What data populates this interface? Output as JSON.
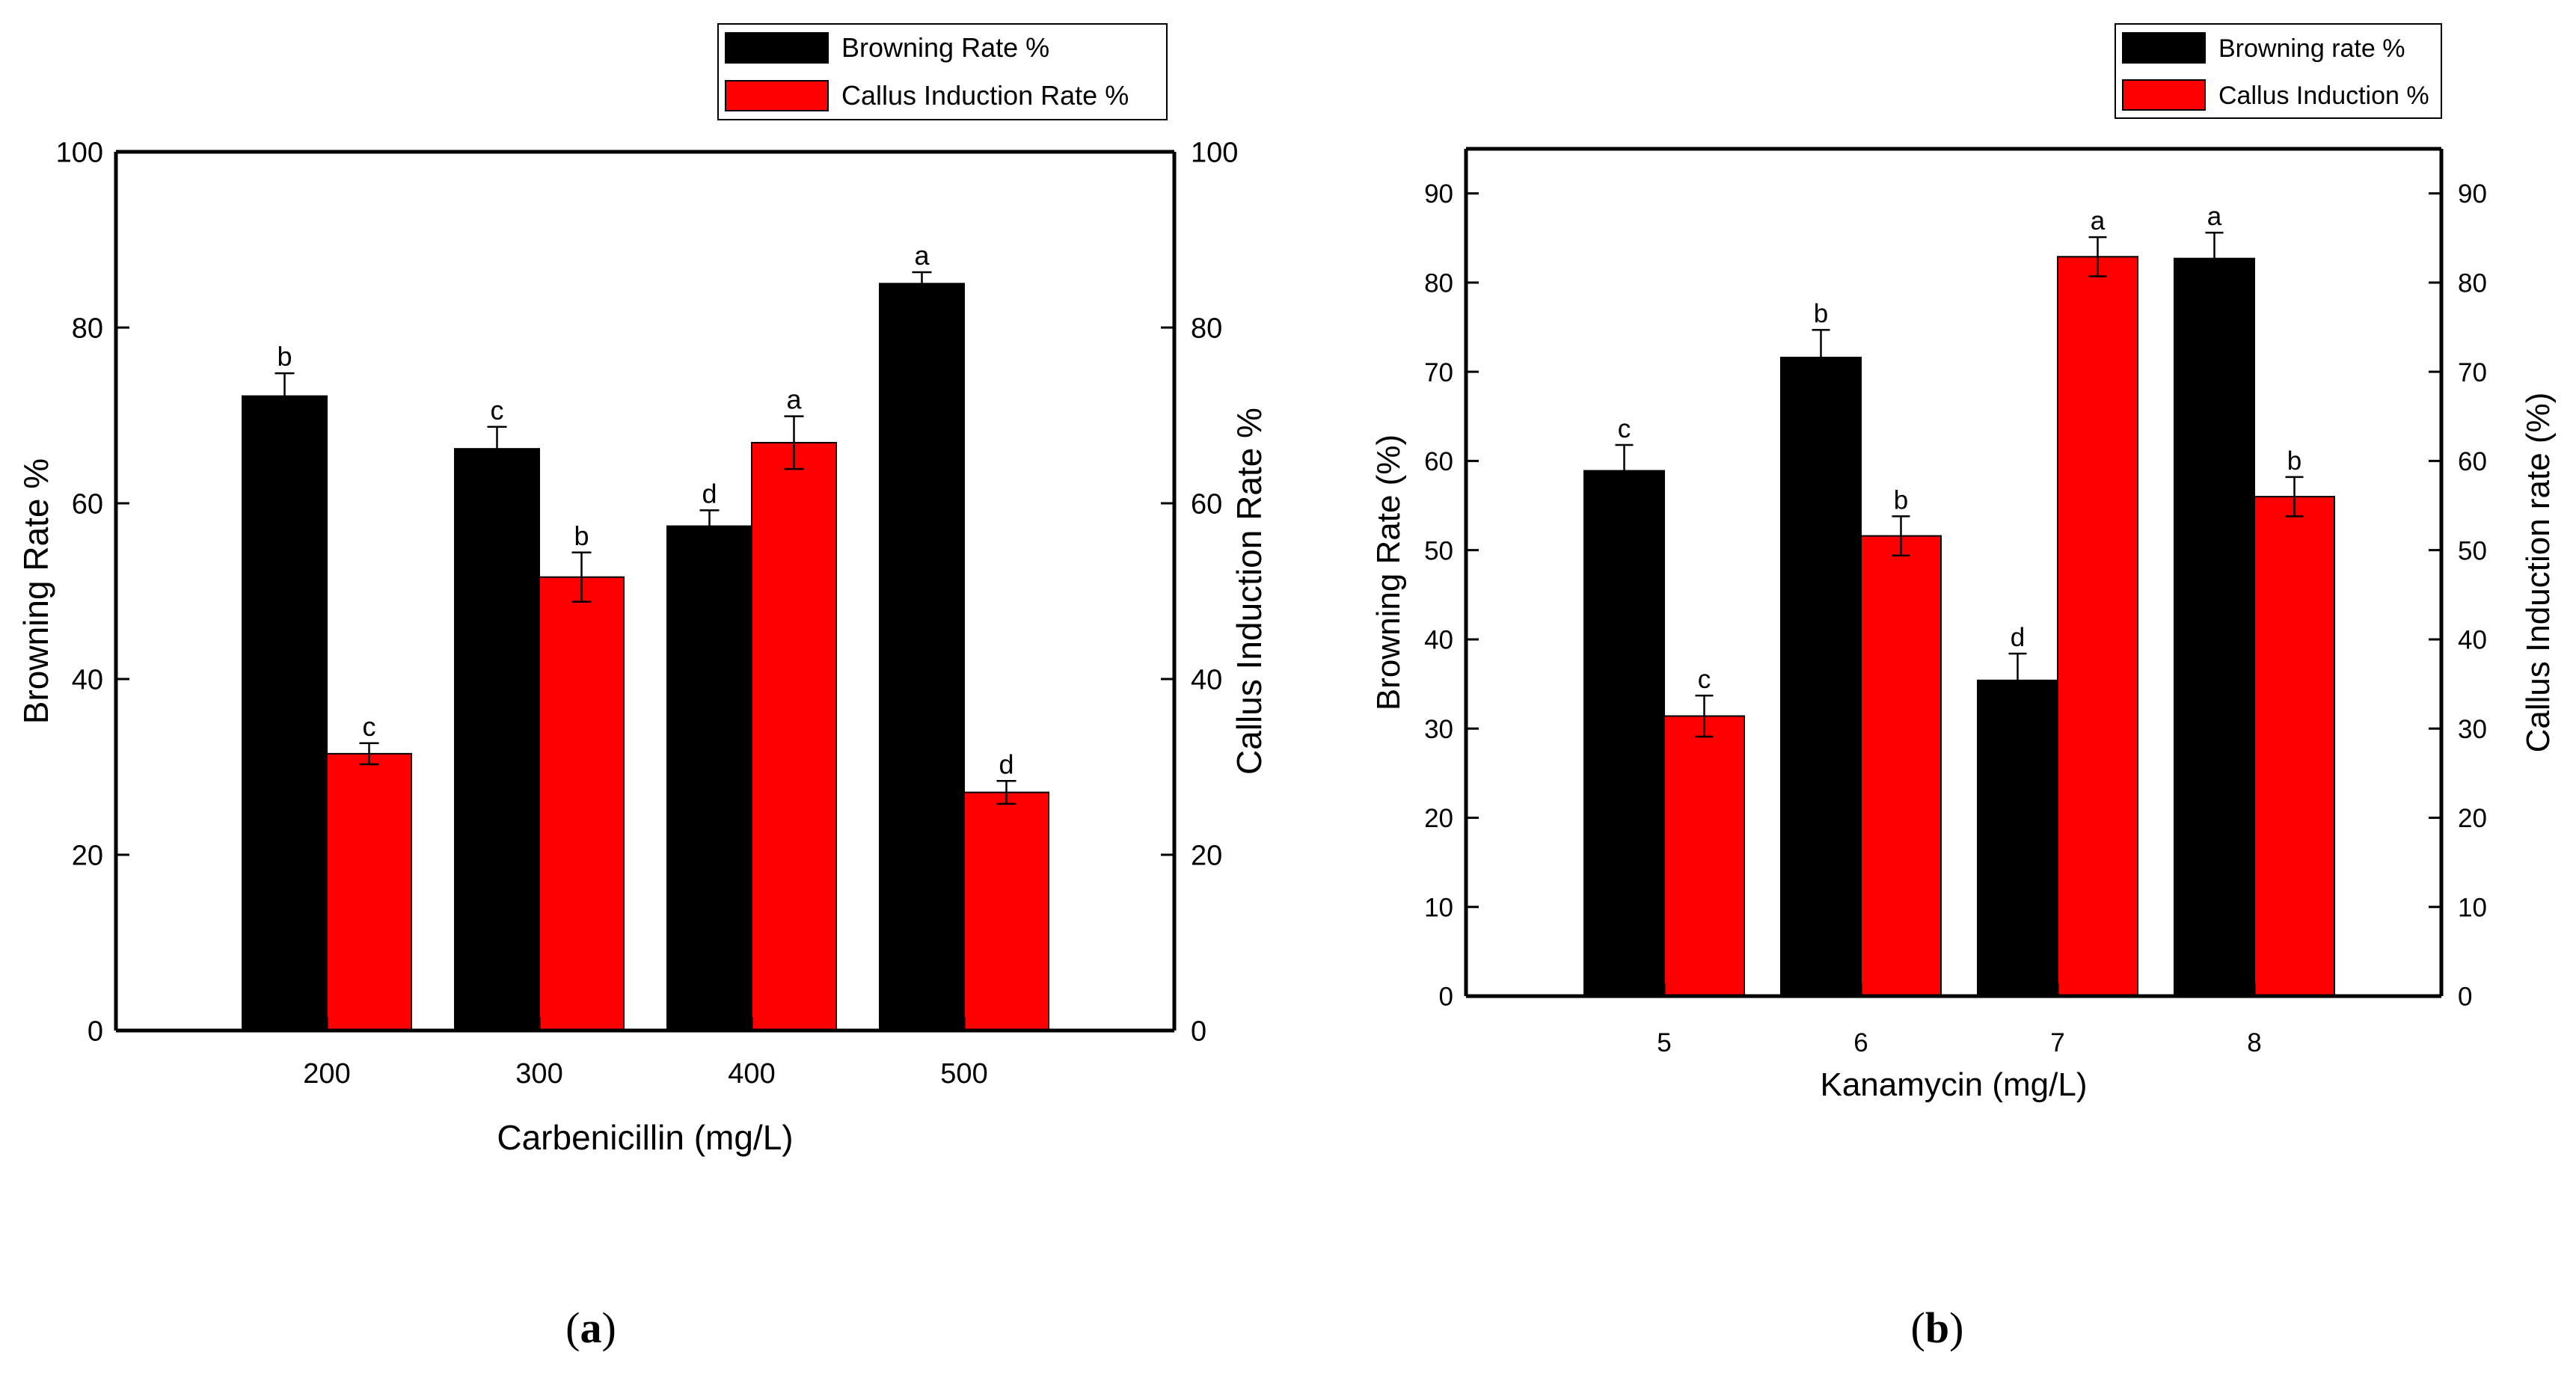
{
  "colors": {
    "browning": "#000000",
    "callus": "#ff0000",
    "axis": "#000000",
    "background": "#ffffff"
  },
  "chart_data": [
    {
      "type": "bar",
      "panel_label": "a",
      "panel_label_bracket_open": "(",
      "panel_label_bracket_close": ")",
      "title": "",
      "categories": [
        "200",
        "300",
        "400",
        "500"
      ],
      "series": [
        {
          "name": "Browning Rate %",
          "axis": "left",
          "values": [
            72.2,
            66.2,
            57.4,
            85.0
          ],
          "errors": [
            2.6,
            2.5,
            1.8,
            1.3
          ],
          "letters": [
            "b",
            "c",
            "d",
            "a"
          ]
        },
        {
          "name": "Callus Induction Rate %",
          "axis": "right",
          "values": [
            31.5,
            51.6,
            66.9,
            27.1
          ],
          "errors": [
            1.2,
            2.8,
            3.0,
            1.3
          ],
          "letters": [
            "c",
            "b",
            "a",
            "d"
          ]
        }
      ],
      "xlabel": "Carbenicillin (mg/L)",
      "ylabel": "Browning Rate %",
      "y2label": "Callus Induction Rate %",
      "ylim": [
        0,
        100
      ],
      "yticks": [
        "0",
        "20",
        "40",
        "60",
        "80",
        "100"
      ],
      "y2lim": [
        0,
        100
      ],
      "y2ticks": [
        "0",
        "20",
        "40",
        "60",
        "80",
        "100"
      ],
      "legend_position": "top-right"
    },
    {
      "type": "bar",
      "panel_label": "b",
      "panel_label_bracket_open": "(",
      "panel_label_bracket_close": ")",
      "title": "",
      "categories": [
        "5",
        "6",
        "7",
        "8"
      ],
      "series": [
        {
          "name": "Browning rate %",
          "axis": "left",
          "values": [
            58.9,
            71.6,
            35.4,
            82.7
          ],
          "errors": [
            2.9,
            3.1,
            3.0,
            2.9
          ],
          "letters": [
            "c",
            "b",
            "d",
            "a"
          ]
        },
        {
          "name": "Callus Induction %",
          "axis": "right",
          "values": [
            31.4,
            51.6,
            82.9,
            56.0
          ],
          "errors": [
            2.3,
            2.2,
            2.2,
            2.2
          ],
          "letters": [
            "c",
            "b",
            "a",
            "b"
          ]
        }
      ],
      "xlabel": "Kanamycin (mg/L)",
      "ylabel": "Browning Rate (%)",
      "y2label": "Callus Induction rate (%)",
      "ylim": [
        0,
        95
      ],
      "yticks": [
        "0",
        "10",
        "20",
        "30",
        "40",
        "50",
        "60",
        "70",
        "80",
        "90"
      ],
      "y2lim": [
        0,
        95
      ],
      "y2ticks": [
        "0",
        "10",
        "20",
        "30",
        "40",
        "50",
        "60",
        "70",
        "80",
        "90"
      ],
      "legend_position": "top-right"
    }
  ]
}
